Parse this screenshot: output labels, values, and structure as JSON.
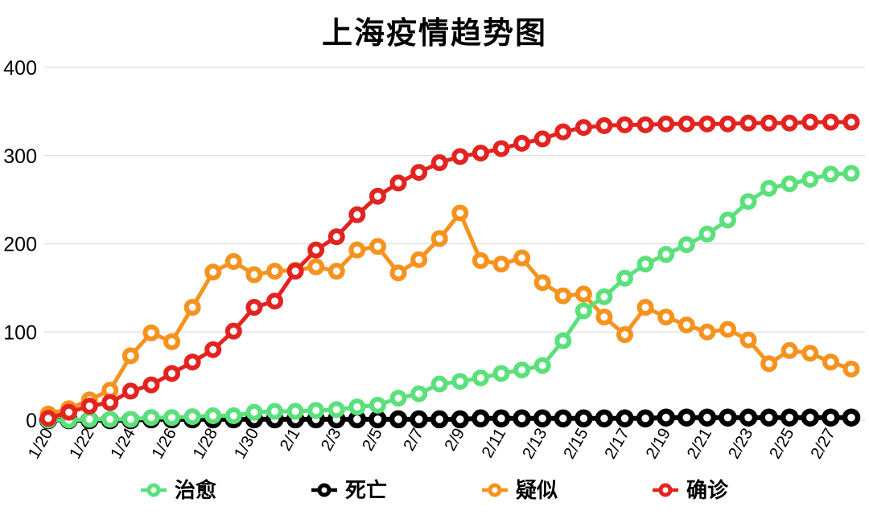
{
  "chart_data": {
    "type": "line",
    "title": "上海疫情趋势图",
    "xlabel": "",
    "ylabel": "",
    "ylim": [
      0,
      400
    ],
    "yticks": [
      0,
      100,
      200,
      300,
      400
    ],
    "grid": "horizontal",
    "grid_color": "#d6d6d6",
    "legend_position": "bottom",
    "x_label_every": 2,
    "x_label_rotation": -60,
    "categories": [
      "1/20",
      "1/21",
      "1/22",
      "1/23",
      "1/24",
      "1/25",
      "1/26",
      "1/27",
      "1/28",
      "1/29",
      "1/30",
      "1/31",
      "2/1",
      "2/2",
      "2/3",
      "2/4",
      "2/5",
      "2/6",
      "2/7",
      "2/8",
      "2/9",
      "2/10",
      "2/11",
      "2/12",
      "2/13",
      "2/14",
      "2/15",
      "2/16",
      "2/17",
      "2/18",
      "2/19",
      "2/20",
      "2/21",
      "2/22",
      "2/23",
      "2/24",
      "2/25",
      "2/26",
      "2/27",
      "2/28"
    ],
    "series": [
      {
        "name": "治愈",
        "color": "#5be07c",
        "z": 3,
        "line_width": 5,
        "marker_radius": 7.5,
        "marker_stroke": 6,
        "values": [
          0,
          0,
          1,
          1,
          1,
          3,
          3,
          4,
          5,
          5,
          9,
          10,
          10,
          11,
          12,
          15,
          17,
          25,
          30,
          41,
          44,
          48,
          53,
          57,
          62,
          90,
          124,
          140,
          161,
          177,
          188,
          199,
          211,
          227,
          248,
          263,
          268,
          273,
          279,
          280
        ]
      },
      {
        "name": "死亡",
        "color": "#000000",
        "z": 2,
        "line_width": 6,
        "marker_radius": 8,
        "marker_stroke": 6.5,
        "values": [
          0,
          0,
          0,
          0,
          0,
          1,
          1,
          1,
          1,
          1,
          1,
          1,
          1,
          1,
          1,
          1,
          1,
          1,
          1,
          1,
          1,
          2,
          2,
          2,
          2,
          2,
          2,
          2,
          2,
          2,
          3,
          3,
          3,
          3,
          3,
          3,
          3,
          3,
          3,
          3
        ]
      },
      {
        "name": "疑似",
        "color": "#f6921e",
        "z": 1,
        "line_width": 5,
        "marker_radius": 7.5,
        "marker_stroke": 6,
        "values": [
          7,
          13,
          23,
          34,
          73,
          99,
          89,
          128,
          168,
          180,
          165,
          169,
          170,
          174,
          169,
          193,
          197,
          167,
          182,
          206,
          235,
          181,
          177,
          184,
          156,
          141,
          143,
          117,
          97,
          128,
          117,
          108,
          100,
          103,
          91,
          64,
          79,
          76,
          66,
          58
        ]
      },
      {
        "name": "确诊",
        "color": "#e22420",
        "z": 4,
        "line_width": 5,
        "marker_radius": 7.5,
        "marker_stroke": 6,
        "values": [
          2,
          9,
          16,
          20,
          33,
          40,
          53,
          66,
          80,
          101,
          128,
          135,
          169,
          193,
          208,
          233,
          254,
          269,
          281,
          292,
          299,
          303,
          308,
          314,
          319,
          327,
          332,
          334,
          335,
          335,
          336,
          336,
          336,
          336,
          337,
          337,
          337,
          338,
          338,
          338
        ]
      }
    ]
  }
}
